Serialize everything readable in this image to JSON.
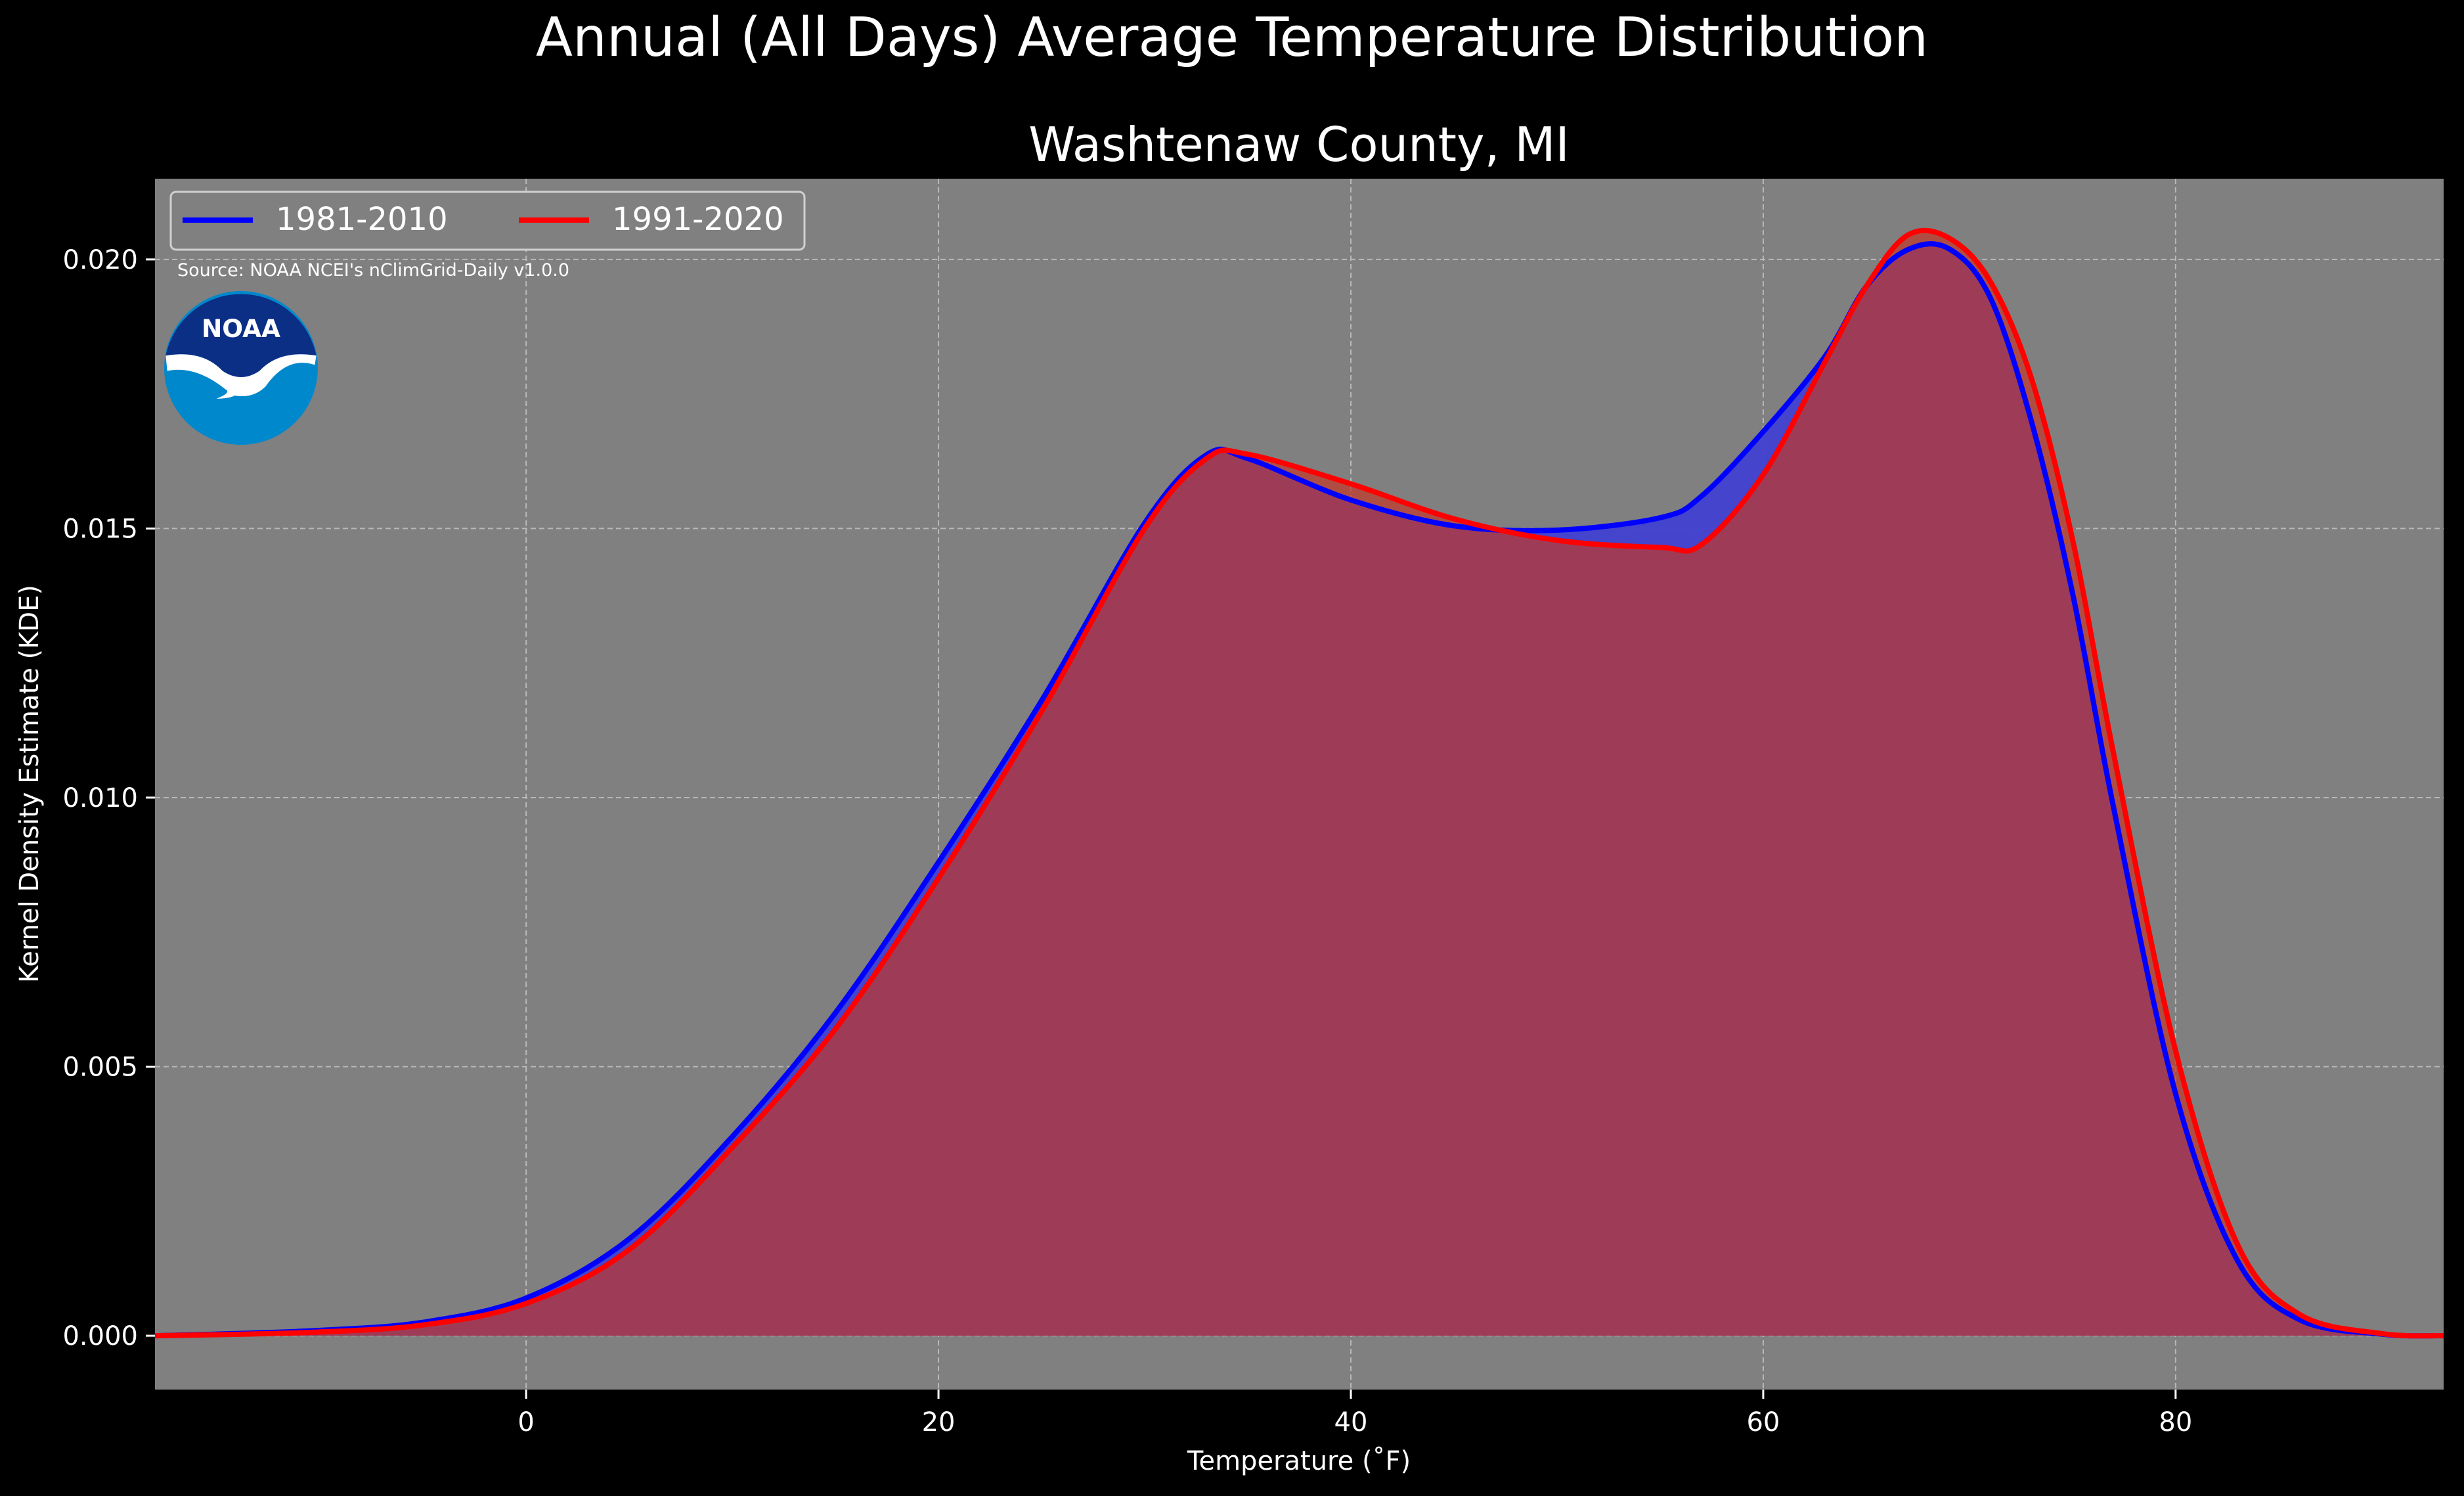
{
  "chart_data": {
    "type": "area",
    "title": "Annual (All Days) Average Temperature Distribution",
    "subtitle": "Washtenaw County, MI",
    "xlabel": "Temperature (˚F)",
    "ylabel": "Kernel Density Estimate (KDE)",
    "xlim": [
      -18,
      93
    ],
    "ylim": [
      -0.001,
      0.0215
    ],
    "xticks": [
      0,
      20,
      40,
      60,
      80
    ],
    "yticks": [
      0.0,
      0.005,
      0.01,
      0.015,
      0.02
    ],
    "ytick_labels": [
      "0.000",
      "0.005",
      "0.010",
      "0.015",
      "0.020"
    ],
    "grid": true,
    "legend_position": "top-left",
    "source": "Source: NOAA NCEI's nClimGrid-Daily v1.0.0",
    "x": [
      -18,
      -15,
      -10,
      -5,
      0,
      5,
      10,
      15,
      20,
      25,
      30,
      33,
      35,
      40,
      45,
      50,
      55,
      57,
      60,
      63,
      65,
      67,
      69,
      71,
      73,
      75,
      77,
      80,
      83,
      86,
      90,
      93
    ],
    "series": [
      {
        "name": "1981-2010",
        "color": "#0000ff",
        "fill": "#4040d0",
        "values": [
          0.0,
          3e-05,
          0.0001,
          0.00025,
          0.0007,
          0.0018,
          0.0037,
          0.006,
          0.0088,
          0.0118,
          0.0151,
          0.01637,
          0.0163,
          0.01553,
          0.01505,
          0.01497,
          0.0152,
          0.0156,
          0.0168,
          0.0182,
          0.0195,
          0.02018,
          0.0202,
          0.0193,
          0.017,
          0.0138,
          0.0098,
          0.0045,
          0.0014,
          0.0003,
          3e-05,
          0.0
        ]
      },
      {
        "name": "1991-2020",
        "color": "#ff0000",
        "fill": "#c0392b",
        "values": [
          0.0,
          2e-05,
          7e-05,
          0.0002,
          0.0006,
          0.0016,
          0.0035,
          0.0057,
          0.0085,
          0.0116,
          0.015,
          0.0163,
          0.01638,
          0.01583,
          0.01518,
          0.01478,
          0.01465,
          0.0147,
          0.016,
          0.0181,
          0.0195,
          0.02045,
          0.0204,
          0.0196,
          0.0178,
          0.0148,
          0.0108,
          0.0053,
          0.0017,
          0.0004,
          4e-05,
          0.0
        ]
      }
    ]
  }
}
